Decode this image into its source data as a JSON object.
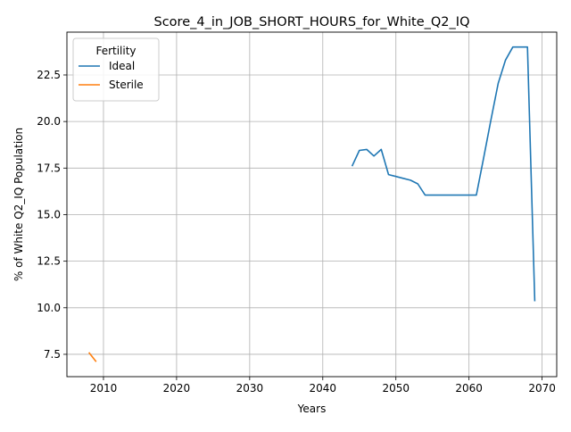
{
  "chart_data": {
    "type": "line",
    "title": "Score_4_in_JOB_SHORT_HOURS_for_White_Q2_IQ",
    "xlabel": "Years",
    "ylabel": "% of White Q2_IQ Population",
    "xlim": [
      2005,
      2072
    ],
    "ylim": [
      6.3,
      24.8
    ],
    "xticks": [
      2010,
      2020,
      2030,
      2040,
      2050,
      2060,
      2070
    ],
    "yticks": [
      7.5,
      10.0,
      12.5,
      15.0,
      17.5,
      20.0,
      22.5
    ],
    "ytick_labels": [
      "7.5",
      "10.0",
      "12.5",
      "15.0",
      "17.5",
      "20.0",
      "22.5"
    ],
    "grid": true,
    "legend": {
      "title": "Fertility",
      "placement": "top-left"
    },
    "series": [
      {
        "name": "Ideal",
        "color": "#1f77b4",
        "x": [
          2044,
          2045,
          2046,
          2047,
          2048,
          2049,
          2050,
          2051,
          2052,
          2053,
          2054,
          2055,
          2056,
          2057,
          2058,
          2059,
          2060,
          2061,
          2062,
          2063,
          2064,
          2065,
          2066,
          2067,
          2068,
          2069
        ],
        "y": [
          17.6,
          18.45,
          18.5,
          18.15,
          18.5,
          17.15,
          17.05,
          16.95,
          16.85,
          16.65,
          16.05,
          16.05,
          16.05,
          16.05,
          16.05,
          16.05,
          16.05,
          16.05,
          18.05,
          20.1,
          22.05,
          23.3,
          24.0,
          24.0,
          24.0,
          10.35
        ]
      },
      {
        "name": "Sterile",
        "color": "#ff7f0e",
        "x": [
          2008,
          2009
        ],
        "y": [
          7.6,
          7.1
        ]
      }
    ]
  }
}
